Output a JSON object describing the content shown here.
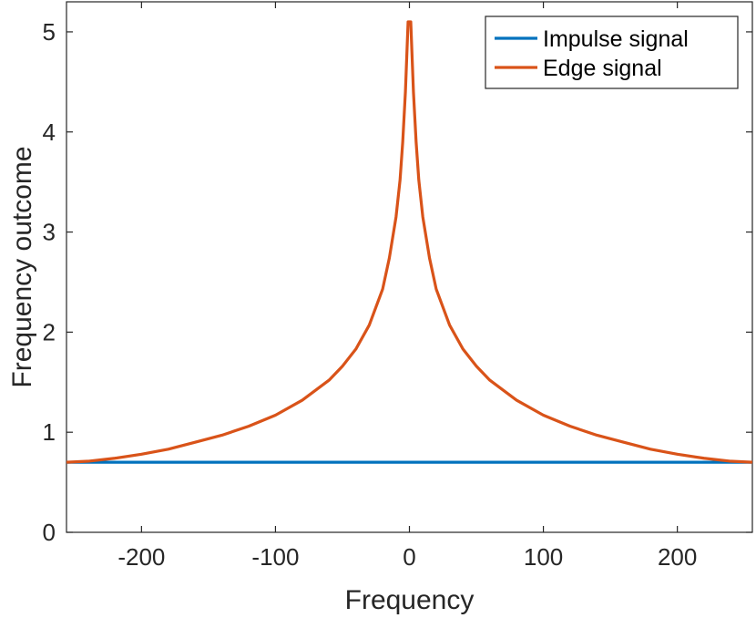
{
  "chart_data": {
    "type": "line",
    "title": "",
    "xlabel": "Frequency",
    "ylabel": "Frequency outcome",
    "xlim": [
      -256,
      256
    ],
    "ylim": [
      0,
      5.3
    ],
    "xticks": [
      -200,
      -100,
      0,
      100,
      200
    ],
    "xtick_labels": [
      "-200",
      "-100",
      "0",
      "100",
      "200"
    ],
    "yticks": [
      0,
      1,
      2,
      3,
      4,
      5
    ],
    "ytick_labels": [
      "0",
      "1",
      "2",
      "3",
      "4",
      "5"
    ],
    "grid": false,
    "legend_position": "top-right",
    "series": [
      {
        "name": "Impulse signal",
        "color": "#0072BD",
        "x": [
          -256,
          -200,
          -150,
          -100,
          -50,
          0,
          50,
          100,
          150,
          200,
          256
        ],
        "y": [
          0.7,
          0.7,
          0.7,
          0.7,
          0.7,
          0.7,
          0.7,
          0.7,
          0.7,
          0.7,
          0.7
        ]
      },
      {
        "name": "Edge signal",
        "color": "#D95319",
        "x": [
          -256,
          -240,
          -220,
          -200,
          -180,
          -160,
          -140,
          -120,
          -100,
          -80,
          -60,
          -50,
          -40,
          -30,
          -20,
          -15,
          -10,
          -7,
          -5,
          -3,
          -2,
          -1,
          0,
          1,
          2,
          3,
          5,
          7,
          10,
          15,
          20,
          30,
          40,
          50,
          60,
          80,
          100,
          120,
          140,
          160,
          180,
          200,
          220,
          240,
          256
        ],
        "y": [
          0.7,
          0.71,
          0.74,
          0.78,
          0.83,
          0.9,
          0.97,
          1.06,
          1.17,
          1.32,
          1.52,
          1.66,
          1.83,
          2.07,
          2.43,
          2.74,
          3.15,
          3.52,
          3.9,
          4.4,
          4.75,
          5.1,
          5.1,
          5.1,
          4.75,
          4.4,
          3.9,
          3.52,
          3.15,
          2.74,
          2.43,
          2.07,
          1.83,
          1.66,
          1.52,
          1.32,
          1.17,
          1.06,
          0.97,
          0.9,
          0.83,
          0.78,
          0.74,
          0.71,
          0.7
        ]
      }
    ]
  }
}
